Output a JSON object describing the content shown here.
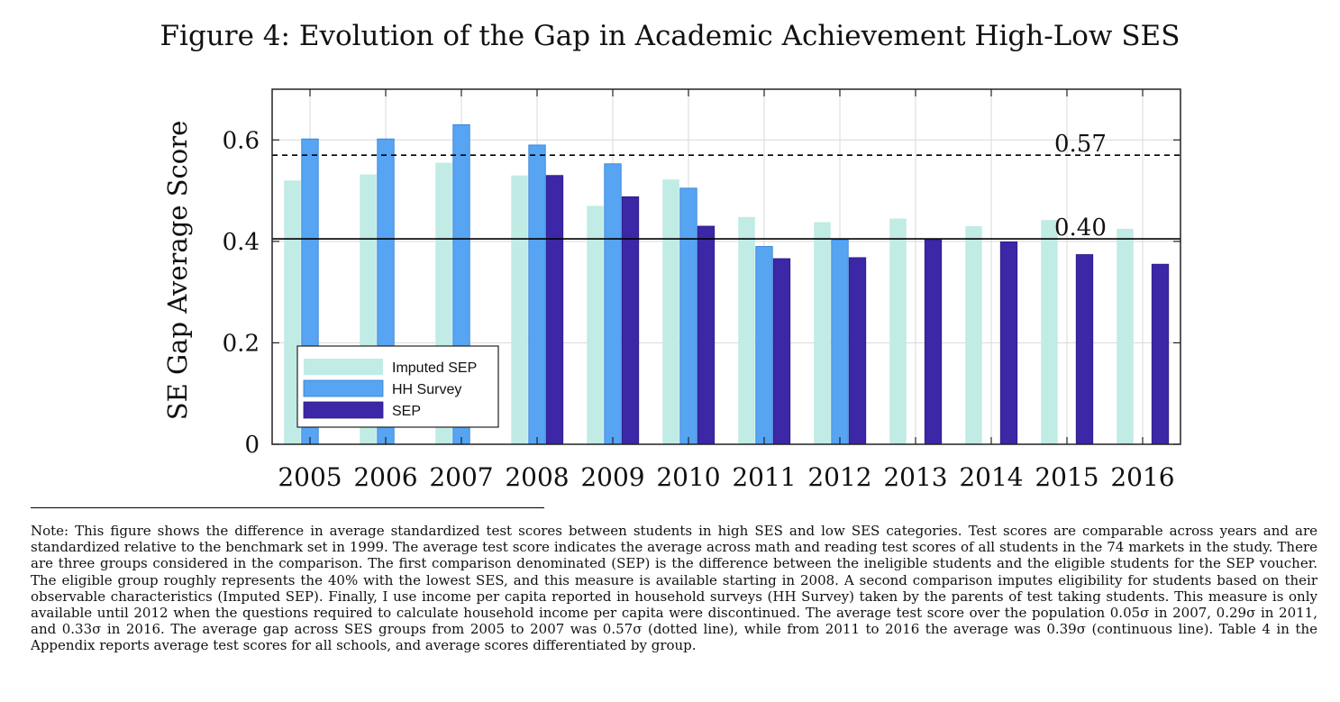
{
  "figure": {
    "title": "Figure 4: Evolution of the Gap in Academic Achievement High-Low SES"
  },
  "chart_data": {
    "type": "bar",
    "title": "",
    "xlabel": "",
    "ylabel": "SE Gap Average Score",
    "ylim": [
      0,
      0.7
    ],
    "yticks": [
      "0",
      "0.2",
      "0.4",
      "0.6"
    ],
    "ytick_values": [
      0,
      0.2,
      0.4,
      0.6
    ],
    "grid": true,
    "legend_position": "bottom-left",
    "categories": [
      "2005",
      "2006",
      "2007",
      "2008",
      "2009",
      "2010",
      "2011",
      "2012",
      "2013",
      "2014",
      "2015",
      "2016"
    ],
    "series": [
      {
        "name": "Imputed SEP",
        "color": "#c1ebe5",
        "values": [
          0.52,
          0.532,
          0.555,
          0.53,
          0.47,
          0.522,
          0.448,
          0.438,
          0.445,
          0.43,
          0.442,
          0.425
        ]
      },
      {
        "name": "HH Survey",
        "color": "#56a4f2",
        "values": [
          0.602,
          0.602,
          0.63,
          0.59,
          0.553,
          0.505,
          0.39,
          0.403,
          null,
          null,
          null,
          null
        ]
      },
      {
        "name": "SEP",
        "color": "#3c27a6",
        "values": [
          null,
          null,
          null,
          0.53,
          0.488,
          0.43,
          0.366,
          0.368,
          0.403,
          0.399,
          0.374,
          0.355
        ]
      }
    ],
    "reference_lines": [
      {
        "value": 0.57,
        "label": "0.57",
        "style": "dashed"
      },
      {
        "value": 0.405,
        "label": "0.40",
        "style": "solid"
      }
    ]
  },
  "note": {
    "text": "Note: This figure shows the difference in average standardized test scores between students in high SES and low SES categories. Test scores are comparable across years and are standardized relative to the benchmark set in 1999. The average test score indicates the average across math and reading test scores of all students in the 74 markets in the study. There are three groups considered in the comparison. The first comparison denominated (SEP) is the difference between the ineligible students and the eligible students for the SEP voucher. The eligible group roughly represents the 40% with the lowest SES, and this measure is available starting in 2008. A second comparison imputes eligibility for students based on their observable characteristics (Imputed SEP). Finally, I use income per capita reported in household surveys (HH Survey) taken by the parents of test taking students. This measure is only available until 2012 when the questions required to calculate household income per capita were discontinued. The average test score over the population 0.05σ in 2007, 0.29σ in 2011, and 0.33σ in 2016. The average gap across SES groups from 2005 to 2007 was 0.57σ (dotted line), while from 2011 to 2016 the average was 0.39σ (continuous line). Table 4 in the Appendix reports average test scores for all schools, and average scores differentiated by group."
  }
}
